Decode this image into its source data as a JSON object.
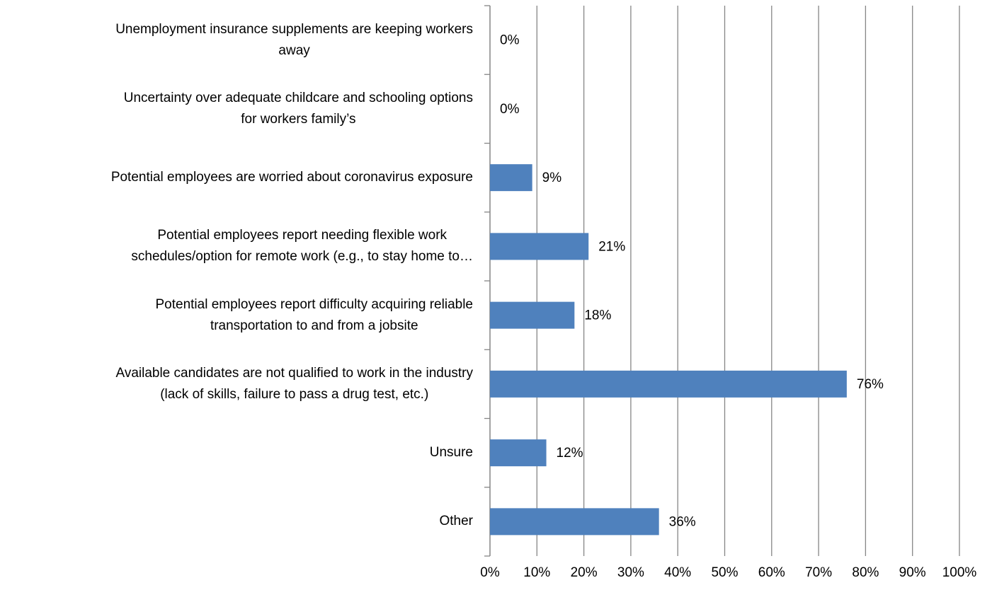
{
  "chart_data": {
    "type": "bar",
    "orientation": "horizontal",
    "categories": [
      "Unemployment insurance supplements are keeping workers\naway",
      "Uncertainty over adequate childcare and schooling options\nfor workers family’s",
      "Potential employees are worried about coronavirus exposure",
      "Potential employees report needing flexible work\nschedules/option for remote work (e.g., to stay home to…",
      "Potential employees report difficulty acquiring reliable\ntransportation to and from a jobsite",
      "Available candidates are not qualified to work in the industry\n(lack of skills, failure to pass a drug test, etc.)",
      "Unsure",
      "Other"
    ],
    "values": [
      0,
      0,
      9,
      21,
      18,
      76,
      12,
      36
    ],
    "value_labels": [
      "0%",
      "0%",
      "9%",
      "21%",
      "18%",
      "76%",
      "12%",
      "36%"
    ],
    "color": "#4f81bd",
    "xlim": [
      0,
      100
    ],
    "xticks": [
      {
        "value": 0,
        "label": "0%"
      },
      {
        "value": 10,
        "label": "10%"
      },
      {
        "value": 20,
        "label": "20%"
      },
      {
        "value": 30,
        "label": "30%"
      },
      {
        "value": 40,
        "label": "40%"
      },
      {
        "value": 50,
        "label": "50%"
      },
      {
        "value": 60,
        "label": "60%"
      },
      {
        "value": 70,
        "label": "70%"
      },
      {
        "value": 80,
        "label": "80%"
      },
      {
        "value": 90,
        "label": "90%"
      },
      {
        "value": 100,
        "label": "100%"
      }
    ],
    "grid": true
  }
}
